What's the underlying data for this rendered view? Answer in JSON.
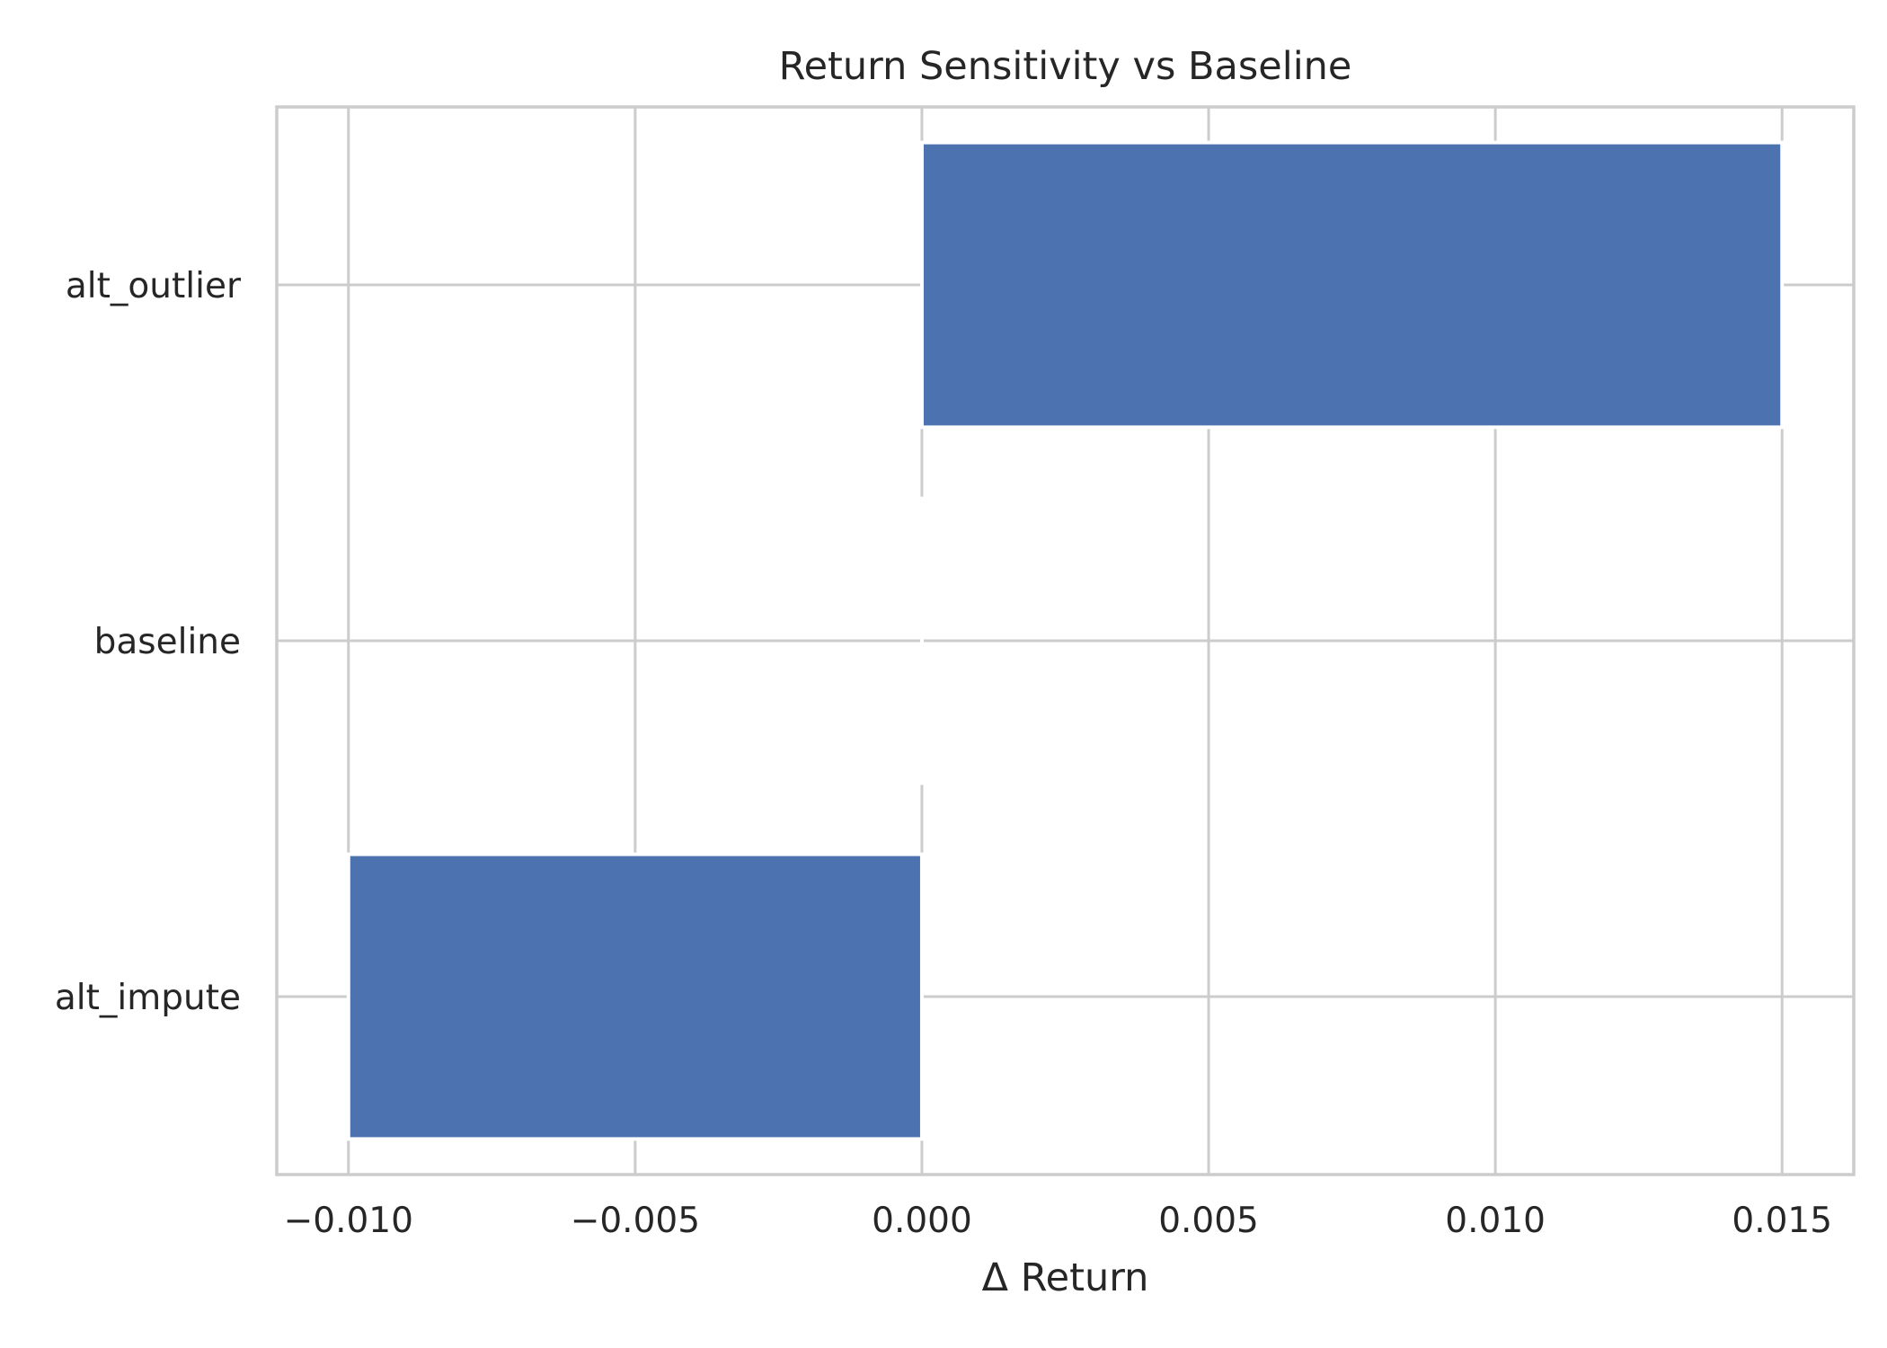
{
  "chart_data": {
    "type": "bar",
    "orientation": "horizontal",
    "title": "Return Sensitivity vs Baseline",
    "xlabel": "Δ Return",
    "ylabel": "",
    "categories": [
      "alt_outlier",
      "baseline",
      "alt_impute"
    ],
    "values": [
      0.015,
      0.0,
      -0.01
    ],
    "xlim": [
      -0.01125,
      0.01625
    ],
    "xticks": [
      -0.01,
      -0.005,
      0.0,
      0.005,
      0.01,
      0.015
    ],
    "xtick_labels": [
      "−0.010",
      "−0.005",
      "0.000",
      "0.005",
      "0.010",
      "0.015"
    ],
    "grid": true,
    "legend": "none",
    "colors": {
      "bar": "#4c72b0",
      "grid": "#cccccc",
      "spine": "#cccccc",
      "text": "#262626",
      "background": "#ffffff"
    }
  }
}
